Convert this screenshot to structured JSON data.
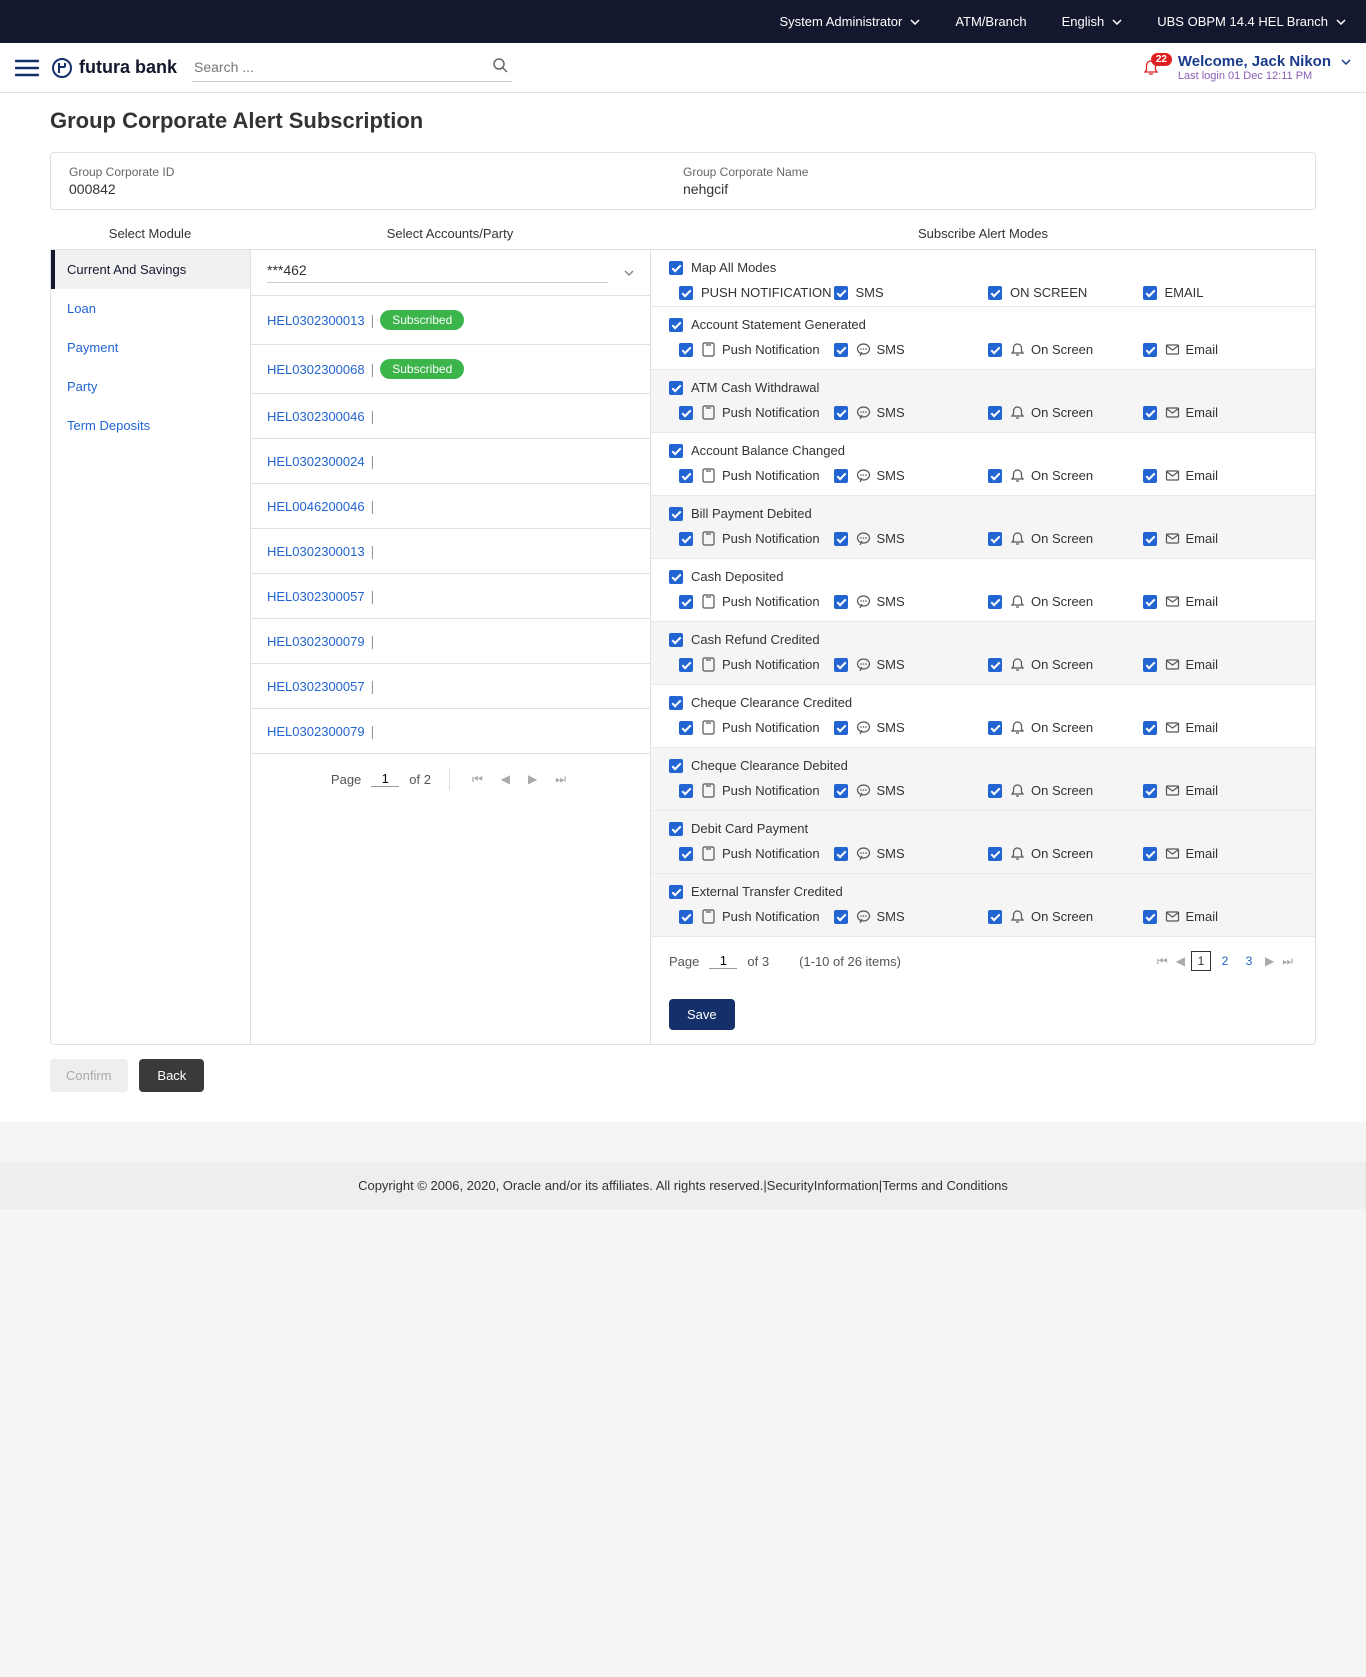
{
  "topbar": {
    "role": "System Administrator",
    "atm": "ATM/Branch",
    "lang": "English",
    "branch": "UBS OBPM 14.4 HEL Branch"
  },
  "header": {
    "logo_text": "futura bank",
    "search_placeholder": "Search ...",
    "notif_count": "22",
    "welcome": "Welcome, Jack Nikon",
    "last_login": "Last login 01 Dec 12:11 PM"
  },
  "page": {
    "title": "Group Corporate Alert Subscription",
    "corp_id_label": "Group Corporate ID",
    "corp_id": "000842",
    "corp_name_label": "Group Corporate Name",
    "corp_name": "nehgcif",
    "col_module": "Select Module",
    "col_accounts": "Select Accounts/Party",
    "col_modes": "Subscribe Alert Modes"
  },
  "modules": [
    {
      "label": "Current And Savings",
      "active": true
    },
    {
      "label": "Loan",
      "active": false
    },
    {
      "label": "Payment",
      "active": false
    },
    {
      "label": "Party",
      "active": false
    },
    {
      "label": "Term Deposits",
      "active": false
    }
  ],
  "account_select": "***462",
  "accounts": [
    {
      "id": "HEL0302300013",
      "subscribed": true
    },
    {
      "id": "HEL0302300068",
      "subscribed": true
    },
    {
      "id": "HEL0302300046",
      "subscribed": false
    },
    {
      "id": "HEL0302300024",
      "subscribed": false
    },
    {
      "id": "HEL0046200046",
      "subscribed": false
    },
    {
      "id": "HEL0302300013",
      "subscribed": false
    },
    {
      "id": "HEL0302300057",
      "subscribed": false
    },
    {
      "id": "HEL0302300079",
      "subscribed": false
    },
    {
      "id": "HEL0302300057",
      "subscribed": false
    },
    {
      "id": "HEL0302300079",
      "subscribed": false
    }
  ],
  "subscribed_text": "Subscribed",
  "acct_pagination": {
    "page_label": "Page",
    "page": "1",
    "of_label": "of 2"
  },
  "map_all": "Map All Modes",
  "mode_heads": [
    "PUSH NOTIFICATION",
    "SMS",
    "ON SCREEN",
    "EMAIL"
  ],
  "mode_labels": {
    "push": "Push Notification",
    "sms": "SMS",
    "screen": "On Screen",
    "email": "Email"
  },
  "alerts": [
    "Account Statement Generated",
    "ATM Cash Withdrawal",
    "Account Balance Changed",
    "Bill Payment Debited",
    "Cash Deposited",
    "Cash Refund Credited",
    "Cheque Clearance Credited",
    "Cheque Clearance Debited",
    "Debit Card Payment",
    "External Transfer Credited"
  ],
  "modes_pagination": {
    "page_label": "Page",
    "page": "1",
    "of_label": "of 3",
    "range": "(1-10 of 26 items)",
    "p2": "2",
    "p3": "3"
  },
  "buttons": {
    "save": "Save",
    "confirm": "Confirm",
    "back": "Back"
  },
  "footer": {
    "copy": "Copyright © 2006, 2020, Oracle and/or its affiliates. All rights reserved.",
    "sec": "SecurityInformation",
    "terms": "Terms and Conditions"
  }
}
